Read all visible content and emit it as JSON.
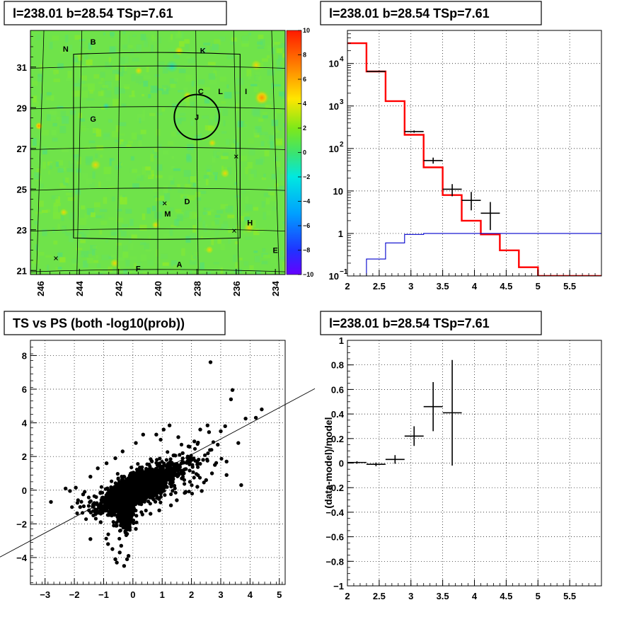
{
  "chart_data": [
    {
      "id": "skymap",
      "type": "heatmap",
      "title": "l=238.01 b=28.54 TSp=7.61",
      "xlim": [
        246.5,
        233.5
      ],
      "ylim": [
        20.8,
        32.8
      ],
      "x_ticks": [
        "246",
        "244",
        "242",
        "240",
        "238",
        "236",
        "234"
      ],
      "y_ticks": [
        "21",
        "23",
        "25",
        "27",
        "29",
        "31"
      ],
      "colorbar": {
        "ticks": [
          "10",
          "8",
          "6",
          "4",
          "2",
          "0",
          "−2",
          "−4",
          "−6",
          "−8",
          "−10"
        ],
        "range": [
          -10,
          10
        ]
      },
      "labels": [
        {
          "text": "N",
          "l": 244.7,
          "b": 31.9
        },
        {
          "text": "B",
          "l": 243.3,
          "b": 32.25
        },
        {
          "text": "K",
          "l": 237.7,
          "b": 31.8
        },
        {
          "text": "C",
          "l": 237.8,
          "b": 29.8
        },
        {
          "text": "L",
          "l": 236.8,
          "b": 29.8
        },
        {
          "text": "I",
          "l": 235.5,
          "b": 29.8
        },
        {
          "text": "G",
          "l": 243.3,
          "b": 28.45
        },
        {
          "text": "J",
          "l": 238.01,
          "b": 28.54
        },
        {
          "text": "D",
          "l": 238.5,
          "b": 24.4
        },
        {
          "text": "M",
          "l": 239.5,
          "b": 23.8
        },
        {
          "text": "H",
          "l": 235.3,
          "b": 23.35
        },
        {
          "text": "E",
          "l": 234.0,
          "b": 22.0
        },
        {
          "text": "F",
          "l": 241.0,
          "b": 21.1
        },
        {
          "text": "A",
          "l": 238.9,
          "b": 21.3
        }
      ],
      "crosses": [
        {
          "l": 239.65,
          "b": 24.3
        },
        {
          "l": 236.0,
          "b": 26.6
        },
        {
          "l": 236.1,
          "b": 22.95
        },
        {
          "l": 245.2,
          "b": 21.6
        }
      ],
      "circle": {
        "l": 238.01,
        "b": 28.54,
        "r": 0.5
      }
    },
    {
      "id": "spectrum",
      "type": "line",
      "title": "l=238.01 b=28.54 TSp=7.61",
      "x_ticks": [
        "2",
        "2.5",
        "3",
        "3.5",
        "4",
        "4.5",
        "5",
        "5.5"
      ],
      "xlim": [
        2,
        6
      ],
      "ylim": [
        0.1,
        60000
      ],
      "yscale": "log",
      "y_ticks": [
        {
          "mant": "10",
          "exp": "−1",
          "value": 0.1
        },
        {
          "mant": "1",
          "exp": "",
          "value": 1
        },
        {
          "mant": "10",
          "exp": "",
          "value": 10
        },
        {
          "mant": "10",
          "exp": "2",
          "value": 100
        },
        {
          "mant": "10",
          "exp": "3",
          "value": 1000
        },
        {
          "mant": "10",
          "exp": "4",
          "value": 10000
        }
      ],
      "edges": [
        2,
        2.3,
        2.6,
        2.9,
        3.2,
        3.5,
        3.8,
        4.1,
        4.4,
        4.7,
        5.0,
        5.3,
        5.6,
        6.0
      ],
      "series": [
        {
          "values": [
            30000,
            6500,
            1300,
            210,
            36,
            8,
            2,
            0.95,
            0.4,
            0.16,
            0.1,
            0.1,
            0.1
          ],
          "color": "#ff0000"
        },
        {
          "values": [
            0.02,
            0.25,
            0.6,
            0.95,
            1.0,
            1.0,
            1.0,
            1.0,
            1.0,
            1.0,
            1.0,
            1.0,
            1.0
          ],
          "color": "#0000cc"
        }
      ],
      "points": [
        {
          "x": 2.45,
          "y": 6500,
          "xerr": 0.15,
          "ylo": 6400,
          "yhi": 6600
        },
        {
          "x": 3.05,
          "y": 250,
          "xerr": 0.15,
          "ylo": 235,
          "yhi": 265
        },
        {
          "x": 3.35,
          "y": 52,
          "xerr": 0.15,
          "ylo": 44,
          "yhi": 61
        },
        {
          "x": 3.65,
          "y": 11,
          "xerr": 0.15,
          "ylo": 7.5,
          "yhi": 14.5
        },
        {
          "x": 3.95,
          "y": 6,
          "xerr": 0.15,
          "ylo": 3.5,
          "yhi": 9.5
        },
        {
          "x": 4.25,
          "y": 3,
          "xerr": 0.15,
          "ylo": 1.2,
          "yhi": 5.5
        }
      ]
    },
    {
      "id": "scatter",
      "type": "scatter",
      "title": "TS vs PS (both -log10(prob))",
      "x_ticks": [
        "−3",
        "−2",
        "−1",
        "0",
        "1",
        "2",
        "3",
        "4",
        "5"
      ],
      "y_ticks": [
        "−4",
        "−2",
        "0",
        "2",
        "4",
        "6",
        "8"
      ],
      "xlim": [
        -3.5,
        5.2
      ],
      "ylim": [
        -5.6,
        8.9
      ],
      "line": {
        "slope": 1.0,
        "intercept": 0.0
      },
      "outliers": [
        [
          2.65,
          7.6
        ],
        [
          3.4,
          5.95
        ],
        [
          3.35,
          5.4
        ],
        [
          4.4,
          4.8
        ],
        [
          4.2,
          4.3
        ],
        [
          3.85,
          4.25
        ],
        [
          2.55,
          3.85
        ],
        [
          2.3,
          3.6
        ],
        [
          2.6,
          3.45
        ],
        [
          3.0,
          3.5
        ],
        [
          3.15,
          3.8
        ],
        [
          2.9,
          2.7
        ],
        [
          2.1,
          2.9
        ],
        [
          3.6,
          2.8
        ],
        [
          2.4,
          1.8
        ],
        [
          2.8,
          1.5
        ],
        [
          3.2,
          1.7
        ],
        [
          2.7,
          1.0
        ],
        [
          2.5,
          0.6
        ],
        [
          3.2,
          0.9
        ],
        [
          3.7,
          0.3
        ],
        [
          2.35,
          -0.05
        ],
        [
          2.2,
          0.2
        ],
        [
          -2.8,
          -0.7
        ],
        [
          -2.15,
          -0.05
        ],
        [
          -1.95,
          0.15
        ],
        [
          -1.7,
          -0.25
        ],
        [
          -1.45,
          0.8
        ],
        [
          -1.5,
          -1.2
        ],
        [
          -1.35,
          -1.5
        ],
        [
          -1.1,
          -1.9
        ],
        [
          -1.45,
          -2.9
        ],
        [
          -0.7,
          -3.5
        ],
        [
          -0.45,
          -3.7
        ],
        [
          -0.2,
          -4.1
        ],
        [
          -0.6,
          -4.1
        ],
        [
          -0.3,
          -4.5
        ],
        [
          -0.55,
          -4.3
        ],
        [
          -0.15,
          -3.9
        ],
        [
          -0.85,
          -3.2
        ],
        [
          -0.4,
          -3.3
        ],
        [
          1.25,
          3.85
        ],
        [
          1.05,
          3.6
        ],
        [
          0.8,
          3.3
        ],
        [
          0.95,
          3.0
        ],
        [
          1.55,
          3.15
        ],
        [
          1.9,
          2.6
        ],
        [
          1.7,
          2.2
        ],
        [
          -1.2,
          1.3
        ],
        [
          -0.9,
          1.6
        ],
        [
          -0.6,
          1.9
        ],
        [
          -0.35,
          2.3
        ],
        [
          0.35,
          3.3
        ],
        [
          0.1,
          2.8
        ],
        [
          1.8,
          -0.1
        ],
        [
          1.95,
          0.5
        ],
        [
          1.5,
          -0.6
        ],
        [
          1.3,
          -0.9
        ],
        [
          0.9,
          -1.2
        ],
        [
          0.6,
          -1.4
        ],
        [
          -0.2,
          -2.6
        ],
        [
          0.1,
          -2.3
        ],
        [
          -0.65,
          -2.1
        ],
        [
          -1.8,
          -1.0
        ],
        [
          -2.3,
          0.1
        ]
      ]
    },
    {
      "id": "residual",
      "type": "scatter",
      "title": "l=238.01 b=28.54 TSp=7.61",
      "ylabel": "(data-model)/model",
      "x_ticks": [
        "2",
        "2.5",
        "3",
        "3.5",
        "4",
        "4.5",
        "5",
        "5.5"
      ],
      "y_ticks": [
        "−1",
        "−0.8",
        "−0.6",
        "−0.4",
        "−0.2",
        "0",
        "0.2",
        "0.4",
        "0.6",
        "0.8",
        "1"
      ],
      "xlim": [
        2,
        6
      ],
      "ylim": [
        -1,
        1
      ],
      "points": [
        {
          "x": 2.15,
          "y": 0.005,
          "xerr": 0.15,
          "yerr": 0.01
        },
        {
          "x": 2.45,
          "y": -0.01,
          "xerr": 0.15,
          "yerr": 0.015
        },
        {
          "x": 2.75,
          "y": 0.03,
          "xerr": 0.15,
          "yerr": 0.035
        },
        {
          "x": 3.05,
          "y": 0.22,
          "xerr": 0.15,
          "yerr": 0.08
        },
        {
          "x": 3.35,
          "y": 0.46,
          "xerr": 0.15,
          "yerr": 0.2
        },
        {
          "x": 3.65,
          "y": 0.41,
          "xerr": 0.15,
          "yerr": 0.43
        }
      ]
    }
  ]
}
